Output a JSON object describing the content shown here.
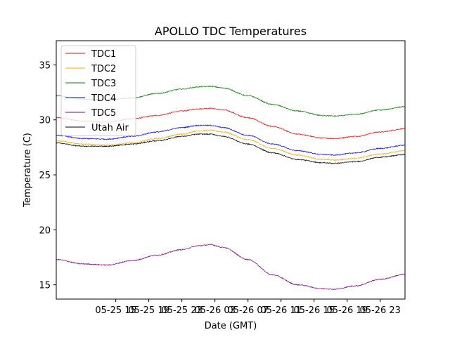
{
  "chart_data": {
    "type": "line",
    "title": "APOLLO TDC Temperatures",
    "xlabel": "Date (GMT)",
    "ylabel": "Temperature (C)",
    "xlim": [
      -3.2,
      39.0
    ],
    "ylim": [
      13.7,
      37.2
    ],
    "x_units": "hours since 05-25 11:00 GMT",
    "x_ticks": [
      {
        "x": 4,
        "label": "05-25 15"
      },
      {
        "x": 8,
        "label": "05-25 19"
      },
      {
        "x": 12,
        "label": "05-25 23"
      },
      {
        "x": 16,
        "label": "05-26 03"
      },
      {
        "x": 20,
        "label": "05-26 07"
      },
      {
        "x": 24,
        "label": "05-26 11"
      },
      {
        "x": 28,
        "label": "05-26 15"
      },
      {
        "x": 32,
        "label": "05-26 19"
      },
      {
        "x": 36,
        "label": "05-26 23"
      }
    ],
    "y_ticks": [
      15,
      20,
      25,
      30,
      35
    ],
    "grid": false,
    "legend_position": "top-left",
    "x": [
      -3.2,
      0,
      3,
      6,
      9,
      12,
      14,
      15.5,
      17,
      20,
      23,
      26,
      29,
      30.5,
      33,
      36,
      39.0
    ],
    "series": [
      {
        "name": "TDC1",
        "color": "#ff0000",
        "values": [
          30.2,
          29.9,
          29.8,
          30.1,
          30.4,
          30.8,
          31.0,
          31.05,
          30.9,
          30.2,
          29.4,
          28.7,
          28.35,
          28.3,
          28.5,
          28.9,
          29.2
        ]
      },
      {
        "name": "TDC2",
        "color": "#ffa500",
        "values": [
          28.1,
          27.8,
          27.7,
          27.9,
          28.3,
          28.7,
          29.0,
          29.05,
          28.9,
          28.2,
          27.4,
          26.8,
          26.4,
          26.35,
          26.5,
          26.9,
          27.2
        ]
      },
      {
        "name": "TDC3",
        "color": "#008000",
        "values": [
          32.2,
          31.9,
          31.8,
          32.0,
          32.4,
          32.8,
          33.0,
          33.05,
          32.9,
          32.2,
          31.4,
          30.8,
          30.4,
          30.35,
          30.5,
          30.9,
          31.2
        ]
      },
      {
        "name": "TDC4",
        "color": "#0000ff",
        "values": [
          28.6,
          28.3,
          28.25,
          28.5,
          28.9,
          29.3,
          29.5,
          29.5,
          29.3,
          28.6,
          27.8,
          27.2,
          26.85,
          26.8,
          27.0,
          27.4,
          27.7
        ]
      },
      {
        "name": "TDC5",
        "color": "#800080",
        "values": [
          17.3,
          16.9,
          16.8,
          17.2,
          17.7,
          18.2,
          18.55,
          18.65,
          18.4,
          17.3,
          15.9,
          15.0,
          14.65,
          14.6,
          14.9,
          15.5,
          15.95
        ]
      },
      {
        "name": "Utah Air",
        "color": "#000000",
        "values": [
          27.9,
          27.6,
          27.6,
          27.8,
          28.1,
          28.5,
          28.7,
          28.7,
          28.5,
          27.8,
          27.0,
          26.4,
          26.1,
          26.05,
          26.2,
          26.6,
          26.85
        ]
      }
    ]
  }
}
